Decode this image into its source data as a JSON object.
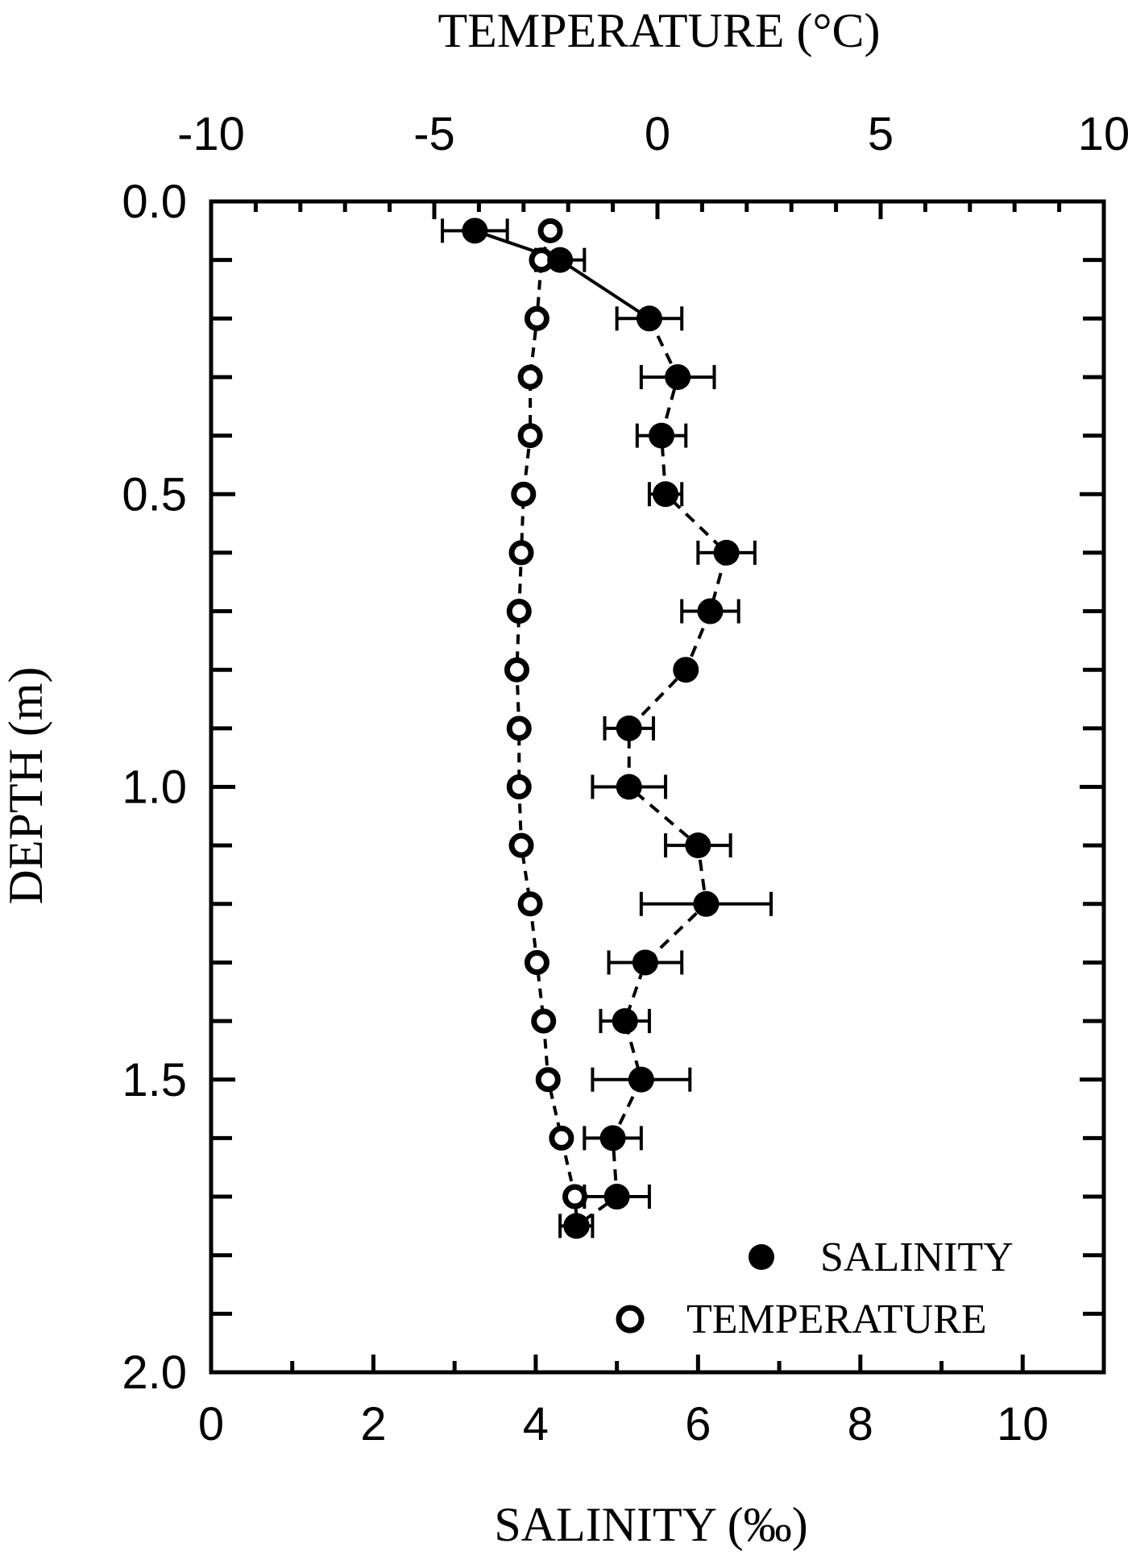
{
  "chart_data": {
    "type": "scatter",
    "title": "",
    "top_axis": {
      "label": "TEMPERATURE (°C)",
      "range": [
        -10,
        10
      ],
      "ticks": [
        -10,
        -5,
        0,
        5,
        10
      ],
      "tick_labels": [
        "-10",
        "-5",
        "0",
        "5",
        "10"
      ]
    },
    "bottom_axis": {
      "label": "SALINITY (‰)",
      "range": [
        0,
        11
      ],
      "ticks": [
        0,
        2,
        4,
        6,
        8,
        10
      ],
      "tick_labels": [
        "0",
        "2",
        "4",
        "6",
        "8",
        "10"
      ]
    },
    "y_axis": {
      "label": "DEPTH (m)",
      "range": [
        0,
        2
      ],
      "inverted": true,
      "ticks": [
        0,
        0.5,
        1.0,
        1.5,
        2.0
      ],
      "tick_labels": [
        "0.0",
        "0.5",
        "1.0",
        "1.5",
        "2.0"
      ]
    },
    "grid": false,
    "legend": {
      "placement": "bottom-right",
      "entries": [
        "SALINITY",
        "TEMPERATURE"
      ]
    },
    "series": [
      {
        "name": "SALINITY",
        "axis": "bottom",
        "marker": "filled-circle",
        "line": "solid-then-dashed",
        "points": [
          {
            "depth": 0.05,
            "value": 3.25,
            "err": 0.4
          },
          {
            "depth": 0.1,
            "value": 4.3,
            "err": 0.3
          },
          {
            "depth": 0.2,
            "value": 5.4,
            "err": 0.4
          },
          {
            "depth": 0.3,
            "value": 5.75,
            "err": 0.45
          },
          {
            "depth": 0.4,
            "value": 5.55,
            "err": 0.3
          },
          {
            "depth": 0.5,
            "value": 5.6,
            "err": 0.2
          },
          {
            "depth": 0.6,
            "value": 6.35,
            "err": 0.35
          },
          {
            "depth": 0.7,
            "value": 6.15,
            "err": 0.35
          },
          {
            "depth": 0.8,
            "value": 5.85,
            "err": 0.0
          },
          {
            "depth": 0.9,
            "value": 5.15,
            "err": 0.3
          },
          {
            "depth": 1.0,
            "value": 5.15,
            "err": 0.45
          },
          {
            "depth": 1.1,
            "value": 6.0,
            "err": 0.4
          },
          {
            "depth": 1.2,
            "value": 6.1,
            "err": 0.8
          },
          {
            "depth": 1.3,
            "value": 5.35,
            "err": 0.45
          },
          {
            "depth": 1.4,
            "value": 5.1,
            "err": 0.3
          },
          {
            "depth": 1.5,
            "value": 5.3,
            "err": 0.6
          },
          {
            "depth": 1.6,
            "value": 4.95,
            "err": 0.35
          },
          {
            "depth": 1.7,
            "value": 5.0,
            "err": 0.4
          },
          {
            "depth": 1.75,
            "value": 4.5,
            "err": 0.2
          }
        ]
      },
      {
        "name": "TEMPERATURE",
        "axis": "top",
        "marker": "open-circle",
        "line": "dashed",
        "points": [
          {
            "depth": 0.05,
            "value": -2.4
          },
          {
            "depth": 0.1,
            "value": -2.6
          },
          {
            "depth": 0.2,
            "value": -2.7
          },
          {
            "depth": 0.3,
            "value": -2.85
          },
          {
            "depth": 0.4,
            "value": -2.85
          },
          {
            "depth": 0.5,
            "value": -3.0
          },
          {
            "depth": 0.6,
            "value": -3.05
          },
          {
            "depth": 0.7,
            "value": -3.1
          },
          {
            "depth": 0.8,
            "value": -3.15
          },
          {
            "depth": 0.9,
            "value": -3.1
          },
          {
            "depth": 1.0,
            "value": -3.1
          },
          {
            "depth": 1.1,
            "value": -3.05
          },
          {
            "depth": 1.2,
            "value": -2.85
          },
          {
            "depth": 1.3,
            "value": -2.7
          },
          {
            "depth": 1.4,
            "value": -2.55
          },
          {
            "depth": 1.5,
            "value": -2.45
          },
          {
            "depth": 1.6,
            "value": -2.15
          },
          {
            "depth": 1.7,
            "value": -1.85
          },
          {
            "depth": 1.75,
            "value": -1.8
          }
        ]
      }
    ]
  },
  "colors": {
    "ink": "#000000",
    "background": "#ffffff"
  }
}
